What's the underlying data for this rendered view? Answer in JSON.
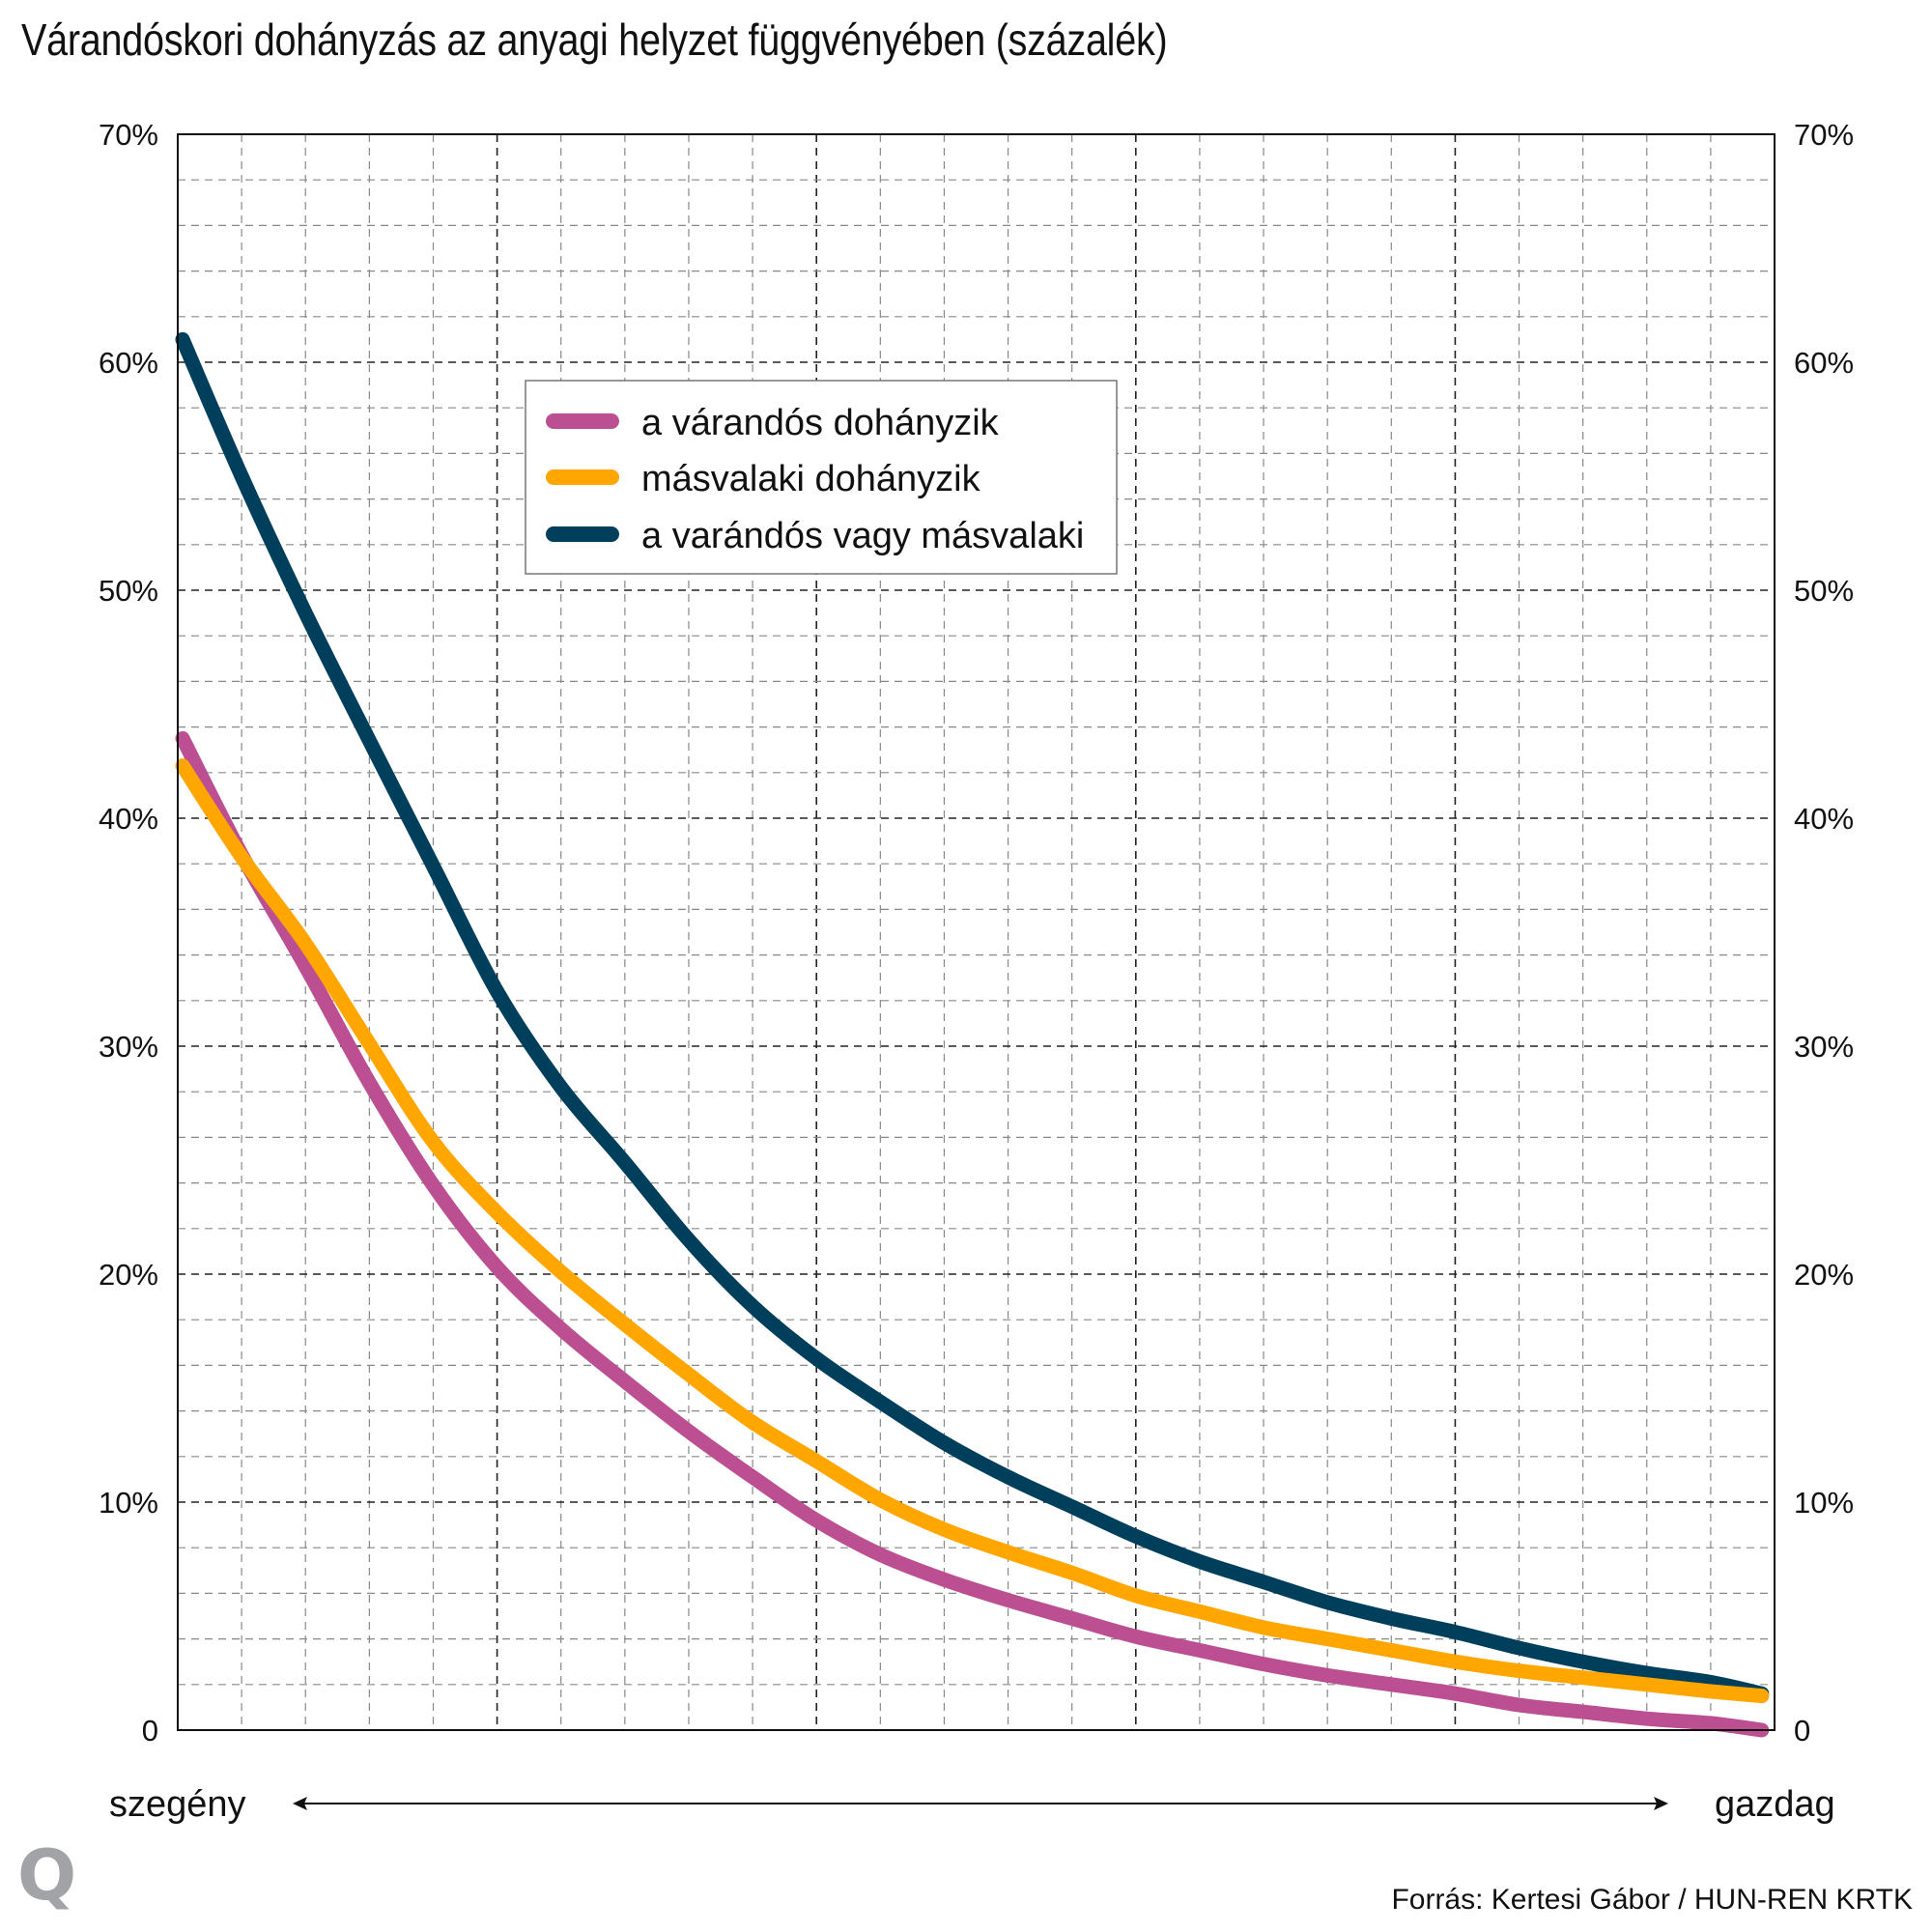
{
  "chart_data": {
    "type": "line",
    "title": "Várandóskori dohányzás az anyagi helyzet függvényében (százalék)",
    "xlabel": "",
    "ylabel": "",
    "x_axis": {
      "left_label": "szegény",
      "right_label": "gazdag",
      "description": "anyagi helyzet (poor → rich), relative position 0–25",
      "range": [
        0,
        25
      ]
    },
    "y_axis": {
      "range": [
        0,
        70
      ],
      "ticks": [
        0,
        10,
        20,
        30,
        40,
        50,
        60,
        70
      ],
      "tick_labels": [
        "0",
        "10%",
        "20%",
        "30%",
        "40%",
        "50%",
        "60%",
        "70%"
      ],
      "minor_step": 2,
      "both_sides": true
    },
    "grid": true,
    "legend_position": "upper-center",
    "x": [
      0,
      1,
      2,
      3,
      4,
      5,
      6,
      7,
      8,
      9,
      10,
      11,
      12,
      13,
      14,
      15,
      16,
      17,
      18,
      19,
      20,
      21,
      22,
      23,
      24,
      24.8
    ],
    "series": [
      {
        "name": "a várandós dohányzik",
        "color": "#bb4f91",
        "values": [
          43.5,
          38.4,
          33.5,
          28.4,
          23.9,
          20.3,
          17.6,
          15.3,
          13.1,
          11.1,
          9.2,
          7.7,
          6.6,
          5.7,
          4.9,
          4.1,
          3.5,
          2.9,
          2.4,
          2.0,
          1.6,
          1.1,
          0.8,
          0.5,
          0.3,
          0.0
        ]
      },
      {
        "name": "másvalaki dohányzik",
        "color": "#ffa600",
        "values": [
          42.3,
          38.3,
          34.5,
          30.1,
          25.8,
          22.7,
          20.1,
          17.8,
          15.6,
          13.5,
          11.8,
          10.1,
          8.8,
          7.8,
          6.9,
          5.9,
          5.2,
          4.5,
          4.0,
          3.5,
          3.0,
          2.6,
          2.3,
          2.0,
          1.7,
          1.5
        ]
      },
      {
        "name": "a varándós vagy másvalaki",
        "color": "#003f5c",
        "values": [
          61.0,
          55.0,
          49.0,
          43.4,
          37.9,
          32.4,
          28.2,
          24.9,
          21.5,
          18.6,
          16.3,
          14.4,
          12.6,
          11.1,
          9.8,
          8.5,
          7.4,
          6.5,
          5.6,
          4.9,
          4.3,
          3.6,
          3.0,
          2.5,
          2.1,
          1.6
        ]
      }
    ]
  },
  "source": "Forrás:  Kertesi Gábor / HUN-REN KRTK",
  "logo": "Q"
}
